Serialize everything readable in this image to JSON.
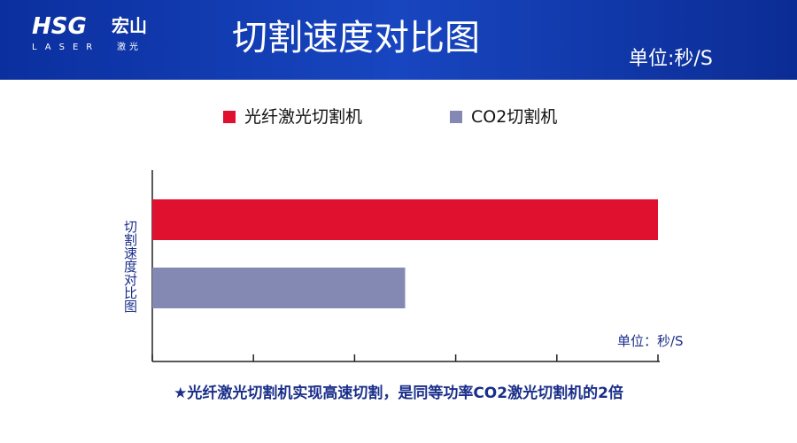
{
  "header": {
    "logo": "HSG",
    "logo_cn": "宏山",
    "logo_sub": "LASER",
    "logo_sub_cn": "激光",
    "title": "切割速度对比图",
    "unit": "单位:秒/S"
  },
  "chart_data": {
    "type": "bar",
    "orientation": "horizontal",
    "categories": [
      null
    ],
    "series": [
      {
        "name": "光纤激光切割机",
        "color": "#e0102f",
        "values": [
          5
        ]
      },
      {
        "name": "CO2切割机",
        "color": "#8489b4",
        "values": [
          2.5
        ]
      }
    ],
    "xlim": [
      0,
      5
    ],
    "xticks": [
      0,
      1,
      2,
      3,
      4,
      5
    ],
    "y_label": "切割速度对比图",
    "unit_label": "单位：秒/S",
    "note": "★光纤激光切割机实现高速切割，是同等功率CO2激光切割机的2倍"
  }
}
